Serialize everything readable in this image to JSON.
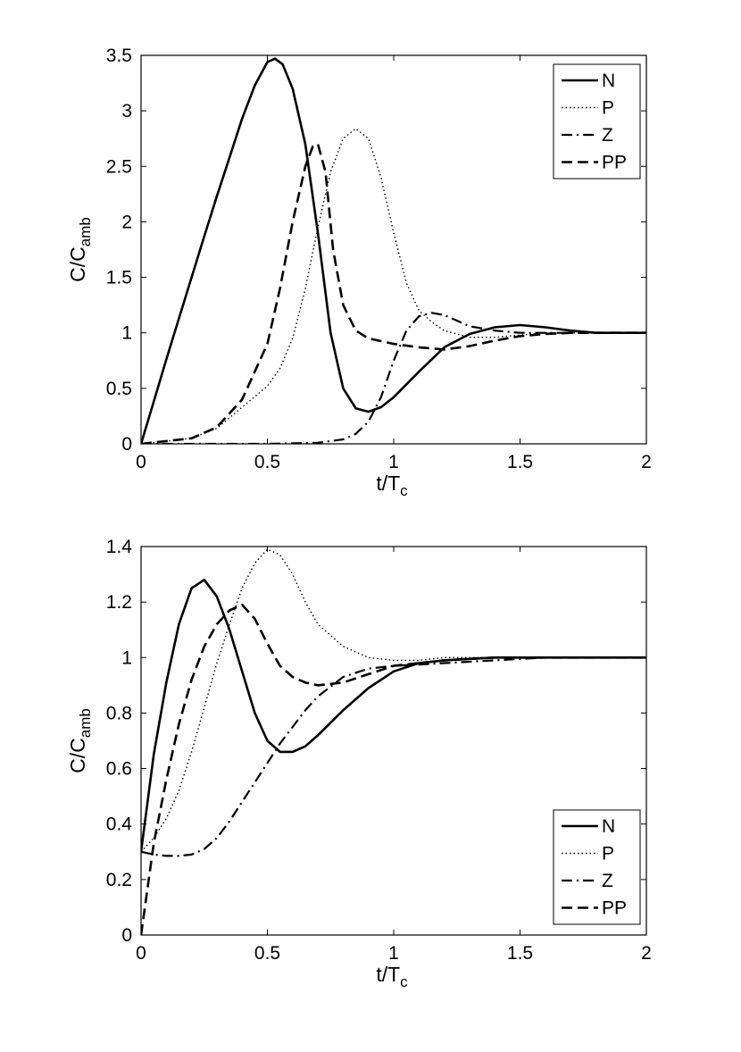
{
  "chart_data": [
    {
      "type": "line",
      "title": "",
      "xlabel": "t/T",
      "xlabel_sub": "c",
      "ylabel": "C/C",
      "ylabel_sub": "amb",
      "xlim": [
        0,
        2
      ],
      "ylim": [
        0,
        3.5
      ],
      "xticks": [
        0,
        0.5,
        1,
        1.5,
        2
      ],
      "xtick_labels": [
        "0",
        "0.5",
        "1",
        "1.5",
        "2"
      ],
      "yticks": [
        0,
        0.5,
        1,
        1.5,
        2,
        2.5,
        3,
        3.5
      ],
      "ytick_labels": [
        "0",
        "0.5",
        "1",
        "1.5",
        "2",
        "2.5",
        "3",
        "3.5"
      ],
      "grid": false,
      "legend_position": "top-right",
      "series": [
        {
          "name": "N",
          "style": "solid",
          "x": [
            0,
            0.05,
            0.1,
            0.15,
            0.2,
            0.25,
            0.3,
            0.35,
            0.4,
            0.45,
            0.5,
            0.53,
            0.56,
            0.6,
            0.65,
            0.7,
            0.75,
            0.8,
            0.85,
            0.9,
            0.95,
            1.0,
            1.1,
            1.2,
            1.3,
            1.4,
            1.5,
            1.6,
            1.7,
            1.8,
            2.0
          ],
          "y": [
            0,
            0.38,
            0.76,
            1.13,
            1.5,
            1.87,
            2.23,
            2.58,
            2.93,
            3.23,
            3.44,
            3.47,
            3.42,
            3.2,
            2.7,
            1.9,
            1.0,
            0.5,
            0.32,
            0.29,
            0.33,
            0.42,
            0.65,
            0.87,
            0.99,
            1.05,
            1.07,
            1.05,
            1.02,
            1.0,
            1.0
          ]
        },
        {
          "name": "P",
          "style": "dotted",
          "x": [
            0,
            0.2,
            0.3,
            0.4,
            0.5,
            0.55,
            0.6,
            0.65,
            0.7,
            0.75,
            0.8,
            0.85,
            0.9,
            0.95,
            1.0,
            1.05,
            1.1,
            1.15,
            1.2,
            1.3,
            1.4,
            1.5,
            1.6,
            2.0
          ],
          "y": [
            0,
            0.05,
            0.14,
            0.33,
            0.52,
            0.68,
            0.95,
            1.4,
            1.95,
            2.45,
            2.75,
            2.84,
            2.75,
            2.4,
            1.9,
            1.45,
            1.2,
            1.1,
            1.02,
            0.96,
            0.96,
            0.98,
            1.0,
            1.0
          ]
        },
        {
          "name": "Z",
          "style": "dashdot",
          "x": [
            0,
            0.5,
            0.7,
            0.8,
            0.85,
            0.9,
            0.95,
            1.0,
            1.05,
            1.1,
            1.15,
            1.2,
            1.25,
            1.3,
            1.4,
            1.5,
            1.6,
            1.7,
            2.0
          ],
          "y": [
            0,
            0,
            0.01,
            0.04,
            0.09,
            0.2,
            0.42,
            0.75,
            1.02,
            1.15,
            1.18,
            1.16,
            1.11,
            1.06,
            1.02,
            1.0,
            1.0,
            1.0,
            1.0
          ]
        },
        {
          "name": "PP",
          "style": "dashed",
          "x": [
            0,
            0.2,
            0.3,
            0.4,
            0.5,
            0.55,
            0.6,
            0.65,
            0.68,
            0.7,
            0.73,
            0.76,
            0.8,
            0.85,
            0.9,
            1.0,
            1.1,
            1.2,
            1.3,
            1.4,
            1.5,
            1.6,
            1.7,
            2.0
          ],
          "y": [
            0,
            0.05,
            0.15,
            0.4,
            0.9,
            1.4,
            2.0,
            2.5,
            2.68,
            2.7,
            2.45,
            1.75,
            1.25,
            1.02,
            0.95,
            0.9,
            0.87,
            0.85,
            0.88,
            0.93,
            0.97,
            0.99,
            1.0,
            1.0
          ]
        }
      ]
    },
    {
      "type": "line",
      "title": "",
      "xlabel": "t/T",
      "xlabel_sub": "c",
      "ylabel": "C/C",
      "ylabel_sub": "amb",
      "xlim": [
        0,
        2
      ],
      "ylim": [
        0,
        1.4
      ],
      "xticks": [
        0,
        0.5,
        1,
        1.5,
        2
      ],
      "xtick_labels": [
        "0",
        "0.5",
        "1",
        "1.5",
        "2"
      ],
      "yticks": [
        0,
        0.2,
        0.4,
        0.6,
        0.8,
        1,
        1.2,
        1.4
      ],
      "ytick_labels": [
        "0",
        "0.2",
        "0.4",
        "0.6",
        "0.8",
        "1",
        "1.2",
        "1.4"
      ],
      "grid": false,
      "legend_position": "bottom-right",
      "series": [
        {
          "name": "N",
          "style": "solid",
          "x": [
            0,
            0.05,
            0.1,
            0.15,
            0.2,
            0.25,
            0.3,
            0.35,
            0.4,
            0.45,
            0.5,
            0.55,
            0.6,
            0.65,
            0.7,
            0.8,
            0.9,
            1.0,
            1.1,
            1.2,
            1.4,
            1.6,
            2.0
          ],
          "y": [
            0.3,
            0.65,
            0.91,
            1.12,
            1.25,
            1.28,
            1.22,
            1.1,
            0.95,
            0.8,
            0.7,
            0.66,
            0.66,
            0.68,
            0.72,
            0.81,
            0.89,
            0.95,
            0.98,
            0.99,
            1.0,
            1.0,
            1.0
          ]
        },
        {
          "name": "P",
          "style": "dotted",
          "x": [
            0,
            0.05,
            0.1,
            0.15,
            0.2,
            0.25,
            0.3,
            0.35,
            0.4,
            0.45,
            0.5,
            0.55,
            0.6,
            0.65,
            0.7,
            0.8,
            0.9,
            1.0,
            1.1,
            1.2,
            1.4,
            1.6,
            2.0
          ],
          "y": [
            0.3,
            0.35,
            0.42,
            0.52,
            0.66,
            0.82,
            0.98,
            1.12,
            1.25,
            1.34,
            1.39,
            1.37,
            1.3,
            1.2,
            1.12,
            1.04,
            1.0,
            0.99,
            0.99,
            1.0,
            1.0,
            1.0,
            1.0
          ]
        },
        {
          "name": "Z",
          "style": "dashdot",
          "x": [
            0,
            0.05,
            0.1,
            0.15,
            0.2,
            0.25,
            0.3,
            0.35,
            0.4,
            0.45,
            0.5,
            0.55,
            0.6,
            0.65,
            0.7,
            0.8,
            0.9,
            1.0,
            1.1,
            1.2,
            1.4,
            1.6,
            2.0
          ],
          "y": [
            0.3,
            0.29,
            0.285,
            0.285,
            0.29,
            0.31,
            0.35,
            0.41,
            0.48,
            0.55,
            0.62,
            0.69,
            0.75,
            0.81,
            0.86,
            0.93,
            0.96,
            0.97,
            0.975,
            0.98,
            0.99,
            1.0,
            1.0
          ]
        },
        {
          "name": "PP",
          "style": "dashed",
          "x": [
            0,
            0.05,
            0.1,
            0.15,
            0.2,
            0.25,
            0.3,
            0.35,
            0.4,
            0.45,
            0.5,
            0.55,
            0.6,
            0.65,
            0.7,
            0.8,
            0.9,
            1.0,
            1.1,
            1.2,
            1.4,
            1.6,
            2.0
          ],
          "y": [
            0.0,
            0.33,
            0.56,
            0.76,
            0.92,
            1.04,
            1.12,
            1.17,
            1.19,
            1.14,
            1.05,
            0.97,
            0.93,
            0.91,
            0.9,
            0.91,
            0.94,
            0.97,
            0.98,
            0.99,
            1.0,
            1.0,
            1.0
          ]
        }
      ]
    }
  ]
}
